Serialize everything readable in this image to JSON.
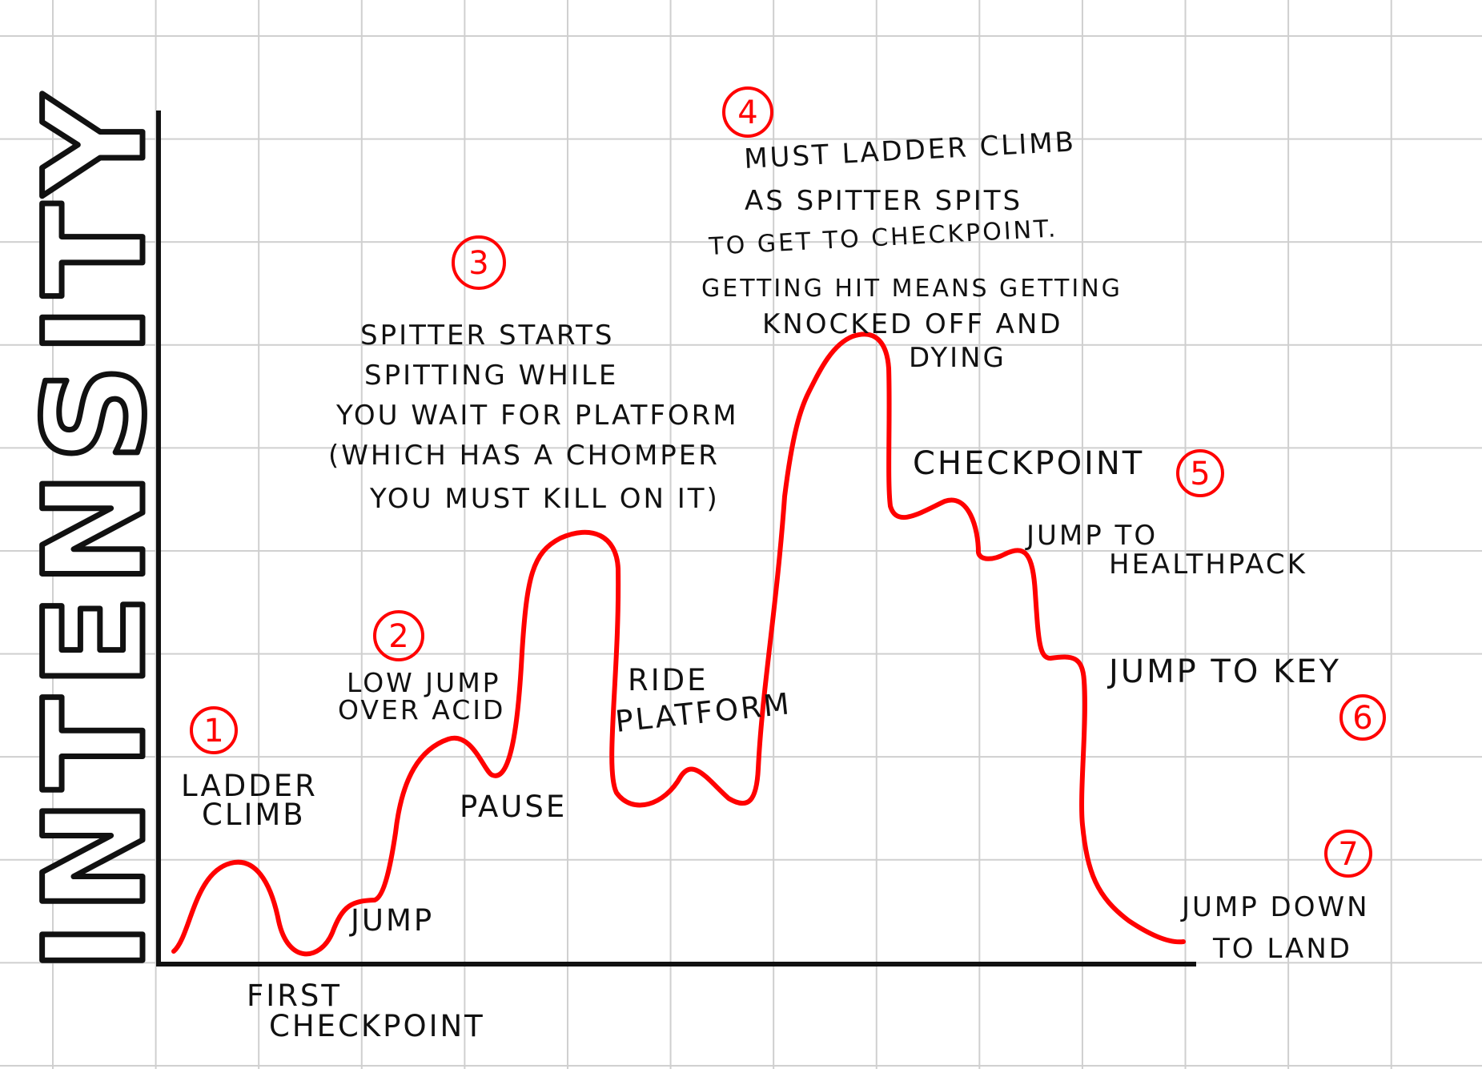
{
  "diagram": {
    "y_axis_label": "INTENSITY",
    "curve_color": "#ff0000",
    "ink_color": "#111111",
    "badges": [
      {
        "id": "1",
        "label": "1"
      },
      {
        "id": "2",
        "label": "2"
      },
      {
        "id": "3",
        "label": "3"
      },
      {
        "id": "4",
        "label": "4"
      },
      {
        "id": "5",
        "label": "5"
      },
      {
        "id": "6",
        "label": "6"
      },
      {
        "id": "7",
        "label": "7"
      }
    ],
    "annotations": {
      "ladder_climb": [
        "LADDER",
        "CLIMB"
      ],
      "first_checkpoint": [
        "FIRST",
        "CHECKPOINT"
      ],
      "jump": "JUMP",
      "low_jump": [
        "LOW JUMP",
        "OVER ACID"
      ],
      "pause": "PAUSE",
      "spitter": [
        "SPITTER STARTS",
        "SPITTING WHILE",
        "YOU WAIT FOR PLATFORM",
        "(WHICH HAS A CHOMPER",
        "YOU MUST KILL ON IT)"
      ],
      "ride_platform": [
        "RIDE",
        "PLATFORM"
      ],
      "ladder_spitter": [
        "MUST LADDER CLIMB",
        "AS SPITTER SPITS",
        "TO GET TO CHECKPOINT.",
        "GETTING HIT MEANS GETTING",
        "KNOCKED OFF AND",
        "DYING"
      ],
      "checkpoint": "CHECKPOINT",
      "healthpack": [
        "JUMP TO",
        "HEALTHPACK"
      ],
      "key": "JUMP TO KEY",
      "jump_down": [
        "JUMP DOWN",
        "TO LAND"
      ]
    }
  }
}
